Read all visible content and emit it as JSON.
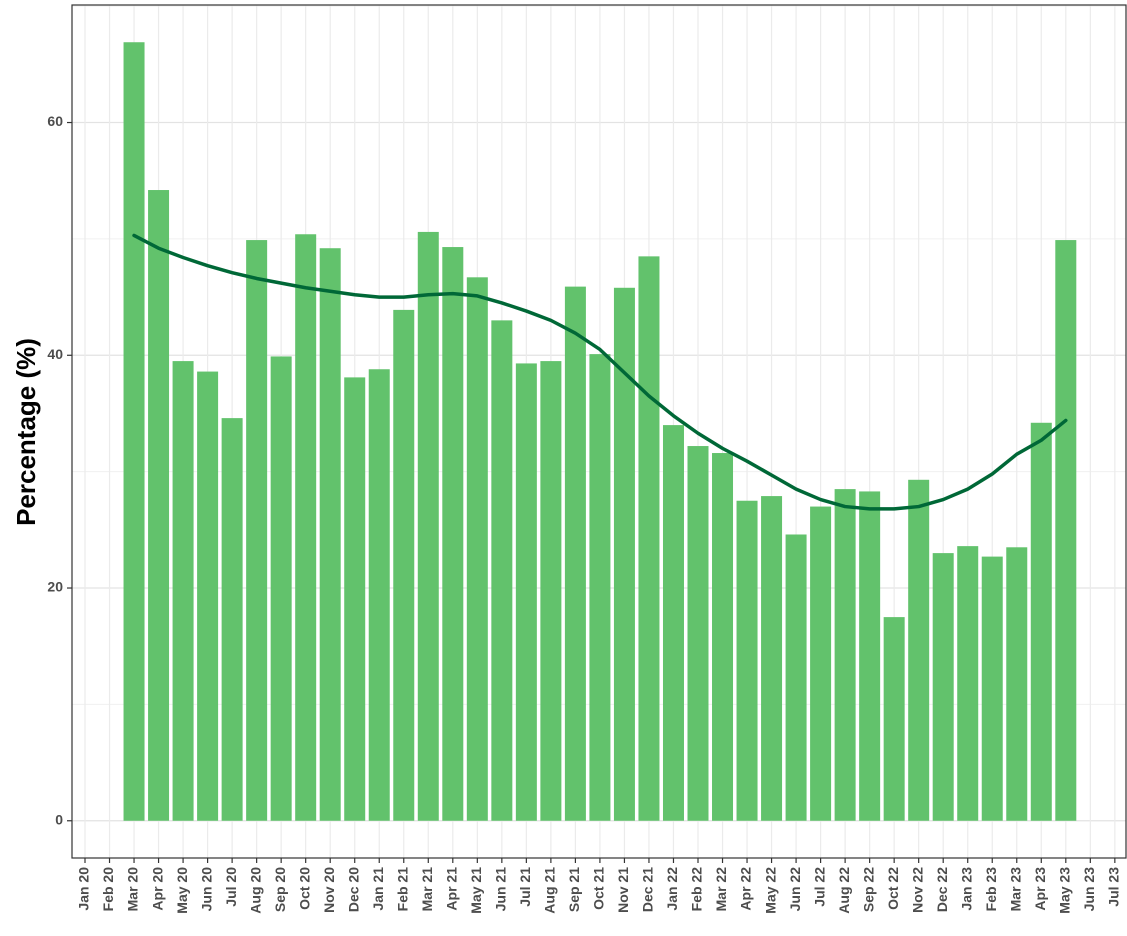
{
  "chart_data": {
    "type": "bar",
    "y_label": "Percentage (%)",
    "categories": [
      "Jan 20",
      "Feb 20",
      "Mar 20",
      "Apr 20",
      "May 20",
      "Jun 20",
      "Jul 20",
      "Aug 20",
      "Sep 20",
      "Oct 20",
      "Nov 20",
      "Dec 20",
      "Jan 21",
      "Feb 21",
      "Mar 21",
      "Apr 21",
      "May 21",
      "Jun 21",
      "Jul 21",
      "Aug 21",
      "Sep 21",
      "Oct 21",
      "Nov 21",
      "Dec 21",
      "Jan 22",
      "Feb 22",
      "Mar 22",
      "Apr 22",
      "May 22",
      "Jun 22",
      "Jul 22",
      "Aug 22",
      "Sep 22",
      "Oct 22",
      "Nov 22",
      "Dec 22",
      "Jan 23",
      "Feb 23",
      "Mar 23",
      "Apr 23",
      "May 23",
      "Jun 23",
      "Jul 23"
    ],
    "series": [
      {
        "type": "bar",
        "color": "#62c26c",
        "values": [
          null,
          null,
          66.9,
          54.2,
          39.5,
          38.6,
          34.6,
          49.9,
          39.9,
          50.4,
          49.2,
          38.1,
          38.8,
          43.9,
          50.6,
          49.3,
          46.7,
          43.0,
          39.3,
          39.5,
          45.9,
          40.1,
          45.8,
          48.5,
          34.0,
          32.2,
          31.6,
          27.5,
          27.9,
          24.6,
          27.0,
          28.5,
          28.3,
          17.5,
          29.3,
          23.0,
          23.6,
          22.7,
          23.5,
          34.2,
          49.9,
          null,
          null
        ]
      },
      {
        "type": "line",
        "color": "#006837",
        "values": [
          null,
          null,
          50.3,
          49.2,
          48.4,
          47.7,
          47.1,
          46.6,
          46.2,
          45.8,
          45.5,
          45.2,
          45.0,
          45.0,
          45.2,
          45.3,
          45.1,
          44.5,
          43.8,
          43.0,
          41.9,
          40.5,
          38.5,
          36.5,
          34.8,
          33.3,
          32.0,
          30.9,
          29.7,
          28.5,
          27.6,
          27.0,
          26.8,
          26.8,
          27.0,
          27.6,
          28.5,
          29.8,
          31.5,
          32.7,
          34.4,
          null,
          null
        ]
      }
    ],
    "ylim": [
      -3.2,
      70.1
    ],
    "yticks": [
      0,
      20,
      40,
      60
    ],
    "yminorticks": [
      10,
      30,
      50,
      70
    ],
    "grid": true
  }
}
